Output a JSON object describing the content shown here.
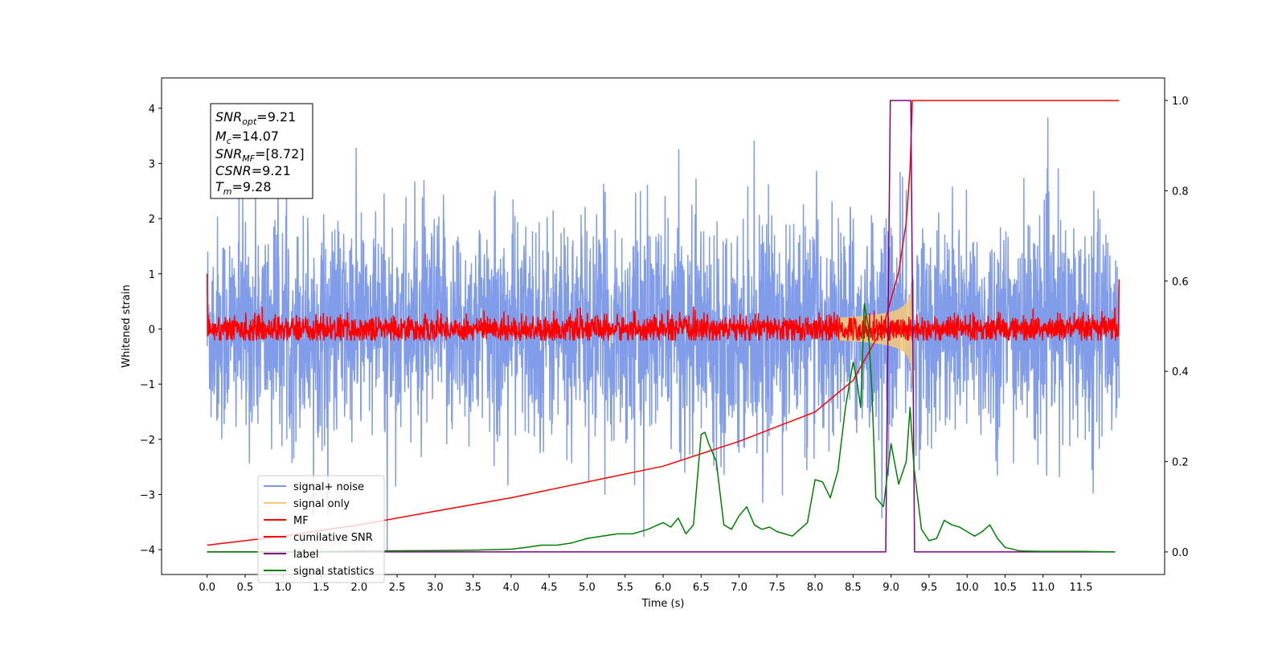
{
  "chart_data": {
    "type": "line",
    "xlabel": "Time (s)",
    "ylabel": "Whitened strain",
    "xlim": [
      -0.6,
      12.6
    ],
    "ylim": [
      -4.45,
      4.55
    ],
    "y2lim": [
      -0.05,
      1.05
    ],
    "x_ticks": [
      0.0,
      0.5,
      1.0,
      1.5,
      2.0,
      2.5,
      3.0,
      3.5,
      4.0,
      4.5,
      5.0,
      5.5,
      6.0,
      6.5,
      7.0,
      7.5,
      8.0,
      8.5,
      9.0,
      9.5,
      10.0,
      10.5,
      11.0,
      11.5
    ],
    "x_tick_labels": [
      "0.0",
      "0.5",
      "1.0",
      "1.5",
      "2.0",
      "2.5",
      "3.0",
      "3.5",
      "4.0",
      "4.5",
      "5.0",
      "5.5",
      "6.0",
      "6.5",
      "7.0",
      "7.5",
      "8.0",
      "8.5",
      "9.0",
      "9.5",
      "10.0",
      "10.5",
      "11.0",
      "11.5"
    ],
    "y_ticks": [
      4,
      3,
      2,
      1,
      0,
      -1,
      -2,
      -3,
      -4
    ],
    "y_tick_labels": [
      "4",
      "3",
      "2",
      "1",
      "0",
      "−1",
      "−2",
      "−3",
      "−4"
    ],
    "y2_ticks": [
      1.0,
      0.8,
      0.6,
      0.4,
      0.2,
      0.0
    ],
    "y2_tick_labels": [
      "1.0",
      "0.8",
      "0.6",
      "0.4",
      "0.2",
      "0.0"
    ],
    "grid": false,
    "legend_position": "lower-left",
    "annotation": {
      "lines": [
        {
          "var": "SNR",
          "sub": "opt",
          "value": "=9.21"
        },
        {
          "var": "M",
          "sub": "c",
          "value": "=14.07"
        },
        {
          "var": "SNR",
          "sub": "MF",
          "value": "=[8.72]"
        },
        {
          "var": "CSNR",
          "sub": "",
          "value": "=9.21"
        },
        {
          "var": "T",
          "sub": "m",
          "value": "=9.28"
        }
      ]
    },
    "series": [
      {
        "name": "signal+ noise",
        "axis": "left",
        "color": "#7a97e8",
        "kind": "noise",
        "x_range": [
          0.0,
          12.0
        ],
        "envelope": {
          "mean": 0.0,
          "std": 1.0,
          "max": 3.9,
          "min": -4.0
        }
      },
      {
        "name": "signal only",
        "axis": "left",
        "color": "#f5c97a",
        "kind": "chirp",
        "x_range": [
          8.3,
          9.28
        ],
        "amplitude_max": 1.0,
        "amplitude_start": 0.2
      },
      {
        "name": "MF",
        "axis": "left",
        "color": "#ff0000",
        "kind": "noise",
        "x_range": [
          0.0,
          12.0
        ],
        "envelope": {
          "mean": 0.0,
          "std": 0.12,
          "max": 0.4,
          "min": -0.2,
          "edge_start": 1.0,
          "edge_end": 0.9
        }
      },
      {
        "name": "cumilative SNR",
        "axis": "right",
        "color": "#ff0000",
        "kind": "line",
        "x": [
          0.0,
          1.0,
          2.0,
          3.0,
          4.0,
          5.0,
          6.0,
          7.0,
          8.0,
          8.5,
          8.9,
          9.1,
          9.2,
          9.25,
          9.28,
          9.3,
          12.0
        ],
        "y": [
          0.015,
          0.035,
          0.06,
          0.09,
          0.12,
          0.155,
          0.19,
          0.245,
          0.31,
          0.38,
          0.5,
          0.62,
          0.73,
          0.85,
          1.0,
          1.0,
          1.0
        ]
      },
      {
        "name": "label",
        "axis": "right",
        "color": "#800080",
        "kind": "line",
        "x": [
          0.0,
          8.93,
          8.99,
          9.26,
          9.31,
          11.95
        ],
        "y": [
          0.0,
          0.0,
          1.0,
          1.0,
          0.0,
          0.0
        ]
      },
      {
        "name": "signal statistics",
        "axis": "right",
        "color": "#008000",
        "kind": "line",
        "x": [
          0.0,
          0.5,
          1.0,
          2.0,
          3.0,
          3.5,
          4.0,
          4.2,
          4.4,
          4.6,
          4.8,
          5.0,
          5.2,
          5.4,
          5.6,
          5.8,
          6.0,
          6.1,
          6.2,
          6.3,
          6.4,
          6.5,
          6.55,
          6.6,
          6.7,
          6.8,
          6.9,
          7.0,
          7.1,
          7.2,
          7.3,
          7.4,
          7.5,
          7.6,
          7.7,
          7.8,
          7.9,
          8.0,
          8.1,
          8.2,
          8.3,
          8.4,
          8.5,
          8.55,
          8.6,
          8.65,
          8.7,
          8.75,
          8.8,
          8.9,
          9.0,
          9.1,
          9.2,
          9.25,
          9.3,
          9.4,
          9.5,
          9.6,
          9.7,
          9.8,
          9.9,
          10.0,
          10.1,
          10.2,
          10.3,
          10.4,
          10.5,
          10.7,
          11.0,
          11.5,
          11.95
        ],
        "y": [
          0.0,
          0.0,
          0.0,
          0.002,
          0.003,
          0.004,
          0.006,
          0.01,
          0.015,
          0.015,
          0.02,
          0.03,
          0.035,
          0.04,
          0.04,
          0.05,
          0.065,
          0.055,
          0.075,
          0.04,
          0.06,
          0.26,
          0.265,
          0.24,
          0.2,
          0.06,
          0.05,
          0.08,
          0.1,
          0.06,
          0.05,
          0.055,
          0.045,
          0.04,
          0.035,
          0.05,
          0.065,
          0.16,
          0.155,
          0.12,
          0.18,
          0.32,
          0.42,
          0.38,
          0.32,
          0.55,
          0.5,
          0.35,
          0.12,
          0.1,
          0.24,
          0.15,
          0.2,
          0.32,
          0.19,
          0.05,
          0.025,
          0.03,
          0.07,
          0.06,
          0.055,
          0.045,
          0.035,
          0.045,
          0.06,
          0.03,
          0.01,
          0.002,
          0.001,
          0.001,
          0.0
        ]
      }
    ]
  }
}
